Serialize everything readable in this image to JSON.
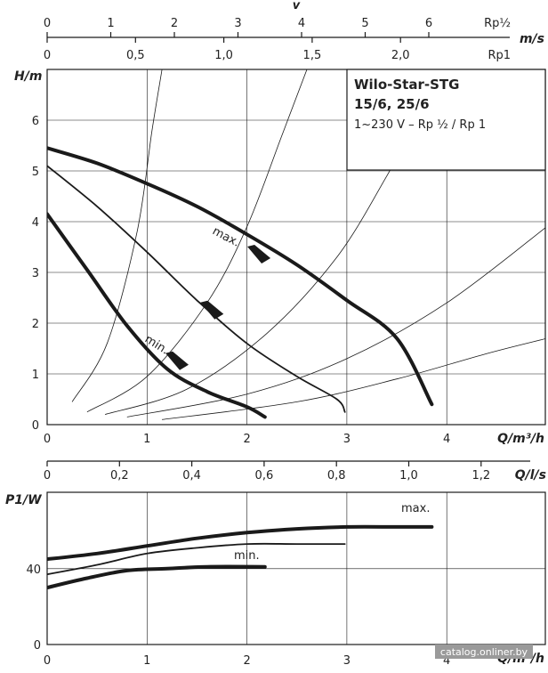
{
  "colors": {
    "curve": "#1a1a1a",
    "frame": "#1a1a1a",
    "grid": "#1a1a1a",
    "watermark_bg": "#9a9a9a"
  },
  "top_scales": {
    "v_label": "v",
    "rp_half": {
      "unit": "Rp½",
      "ticks": [
        "0",
        "1",
        "2",
        "3",
        "4",
        "5",
        "6"
      ]
    },
    "ms": {
      "unit": "m/s",
      "ticks": [
        "0",
        "0,5",
        "1,0",
        "1,5",
        "2,0"
      ]
    },
    "rp1_unit": "Rp1"
  },
  "product_box": {
    "title_line1": "Wilo-Star-STG",
    "title_line2": "15/6, 25/6",
    "subtitle": "1~230 V – Rp ½ / Rp 1"
  },
  "ls_scale": {
    "unit": "Q/l/s",
    "ticks": [
      "0",
      "0,2",
      "0,4",
      "0,6",
      "0,8",
      "1,0",
      "1,2"
    ]
  },
  "watermark": "catalog.onliner.by",
  "chart_data": [
    {
      "type": "line",
      "name": "head",
      "xlabel": "Q/m³/h",
      "ylabel": "H/m",
      "xlim": [
        0,
        5.0
      ],
      "ylim": [
        0,
        7.0
      ],
      "x_ticks": [
        "0",
        "1",
        "2",
        "3",
        "4"
      ],
      "y_ticks": [
        "0",
        "1",
        "2",
        "3",
        "4",
        "5",
        "6"
      ],
      "grid": true,
      "series": [
        {
          "name": "max.",
          "weight": "bold",
          "points": [
            [
              0,
              5.45
            ],
            [
              0.5,
              5.15
            ],
            [
              1.0,
              4.75
            ],
            [
              1.5,
              4.3
            ],
            [
              2.0,
              3.75
            ],
            [
              2.5,
              3.15
            ],
            [
              3.0,
              2.45
            ],
            [
              3.5,
              1.7
            ],
            [
              3.85,
              0.4
            ]
          ]
        },
        {
          "name": "",
          "weight": "thin",
          "points": [
            [
              0,
              5.1
            ],
            [
              0.5,
              4.3
            ],
            [
              1.0,
              3.4
            ],
            [
              1.5,
              2.45
            ],
            [
              2.0,
              1.6
            ],
            [
              2.5,
              0.95
            ],
            [
              2.9,
              0.5
            ],
            [
              2.98,
              0.25
            ]
          ]
        },
        {
          "name": "min.",
          "weight": "bold",
          "points": [
            [
              0,
              4.15
            ],
            [
              0.4,
              3.05
            ],
            [
              0.8,
              1.95
            ],
            [
              1.2,
              1.1
            ],
            [
              1.6,
              0.65
            ],
            [
              2.0,
              0.35
            ],
            [
              2.18,
              0.15
            ]
          ]
        }
      ],
      "system_curves": [
        [
          [
            0.25,
            0.45
          ],
          [
            0.6,
            1.6
          ],
          [
            0.9,
            3.8
          ],
          [
            1.05,
            5.8
          ],
          [
            1.15,
            7.0
          ]
        ],
        [
          [
            0.4,
            0.25
          ],
          [
            1.0,
            0.95
          ],
          [
            1.6,
            2.4
          ],
          [
            2.0,
            3.9
          ],
          [
            2.35,
            5.7
          ],
          [
            2.6,
            7.0
          ]
        ],
        [
          [
            0.58,
            0.2
          ],
          [
            1.4,
            0.7
          ],
          [
            2.2,
            1.8
          ],
          [
            2.9,
            3.3
          ],
          [
            3.4,
            4.9
          ],
          [
            3.7,
            6.0
          ]
        ],
        [
          [
            0.8,
            0.15
          ],
          [
            2.0,
            0.6
          ],
          [
            3.0,
            1.3
          ],
          [
            4.0,
            2.4
          ],
          [
            5.0,
            3.9
          ]
        ],
        [
          [
            1.15,
            0.1
          ],
          [
            2.5,
            0.45
          ],
          [
            3.5,
            0.9
          ],
          [
            4.4,
            1.4
          ],
          [
            5.0,
            1.7
          ]
        ]
      ],
      "markers": [
        {
          "x": 2.12,
          "y": 3.35
        },
        {
          "x": 1.65,
          "y": 2.25
        },
        {
          "x": 1.3,
          "y": 1.25
        }
      ]
    },
    {
      "type": "line",
      "name": "power",
      "xlabel": "Q/m³/h",
      "ylabel": "P1/W",
      "xlim": [
        0,
        5.0
      ],
      "ylim": [
        0,
        100
      ],
      "x_ticks": [
        "0",
        "1",
        "2",
        "3",
        "4"
      ],
      "y_ticks": [
        "0",
        "40"
      ],
      "grid": true,
      "series": [
        {
          "name": "max.",
          "weight": "bold",
          "points": [
            [
              0,
              45
            ],
            [
              0.5,
              48
            ],
            [
              1.0,
              52
            ],
            [
              1.5,
              56
            ],
            [
              2.0,
              59
            ],
            [
              2.5,
              61
            ],
            [
              3.0,
              62
            ],
            [
              3.5,
              62
            ],
            [
              3.85,
              62
            ]
          ]
        },
        {
          "name": "",
          "weight": "thin",
          "points": [
            [
              0,
              37
            ],
            [
              0.5,
              42
            ],
            [
              1.0,
              48
            ],
            [
              1.5,
              51
            ],
            [
              2.0,
              53
            ],
            [
              2.5,
              53
            ],
            [
              2.98,
              53
            ]
          ]
        },
        {
          "name": "min.",
          "weight": "bold",
          "points": [
            [
              0,
              30
            ],
            [
              0.4,
              35
            ],
            [
              0.8,
              39
            ],
            [
              1.2,
              40
            ],
            [
              1.6,
              41
            ],
            [
              2.18,
              41
            ]
          ]
        }
      ]
    }
  ]
}
